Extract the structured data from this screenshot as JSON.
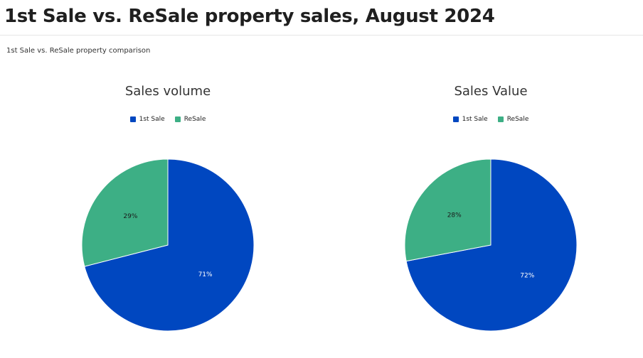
{
  "page": {
    "title": "1st Sale vs. ReSale property sales, August 2024",
    "subtitle": "1st Sale vs. ReSale property comparison"
  },
  "colors": {
    "first_sale": "#0047c0",
    "resale": "#3daf85",
    "label_on_first_sale": "#ffffff",
    "label_on_resale": "#1a1a1a"
  },
  "chart_data": [
    {
      "type": "pie",
      "title": "Sales volume",
      "legend": [
        "1st Sale",
        "ReSale"
      ],
      "legend_position": "top",
      "slices": [
        {
          "label": "1st Sale",
          "value": 71,
          "display": "71%"
        },
        {
          "label": "ReSale",
          "value": 29,
          "display": "29%"
        }
      ]
    },
    {
      "type": "pie",
      "title": "Sales Value",
      "legend": [
        "1st Sale",
        "ReSale"
      ],
      "legend_position": "top",
      "slices": [
        {
          "label": "1st Sale",
          "value": 72,
          "display": "72%"
        },
        {
          "label": "ReSale",
          "value": 28,
          "display": "28%"
        }
      ]
    }
  ]
}
